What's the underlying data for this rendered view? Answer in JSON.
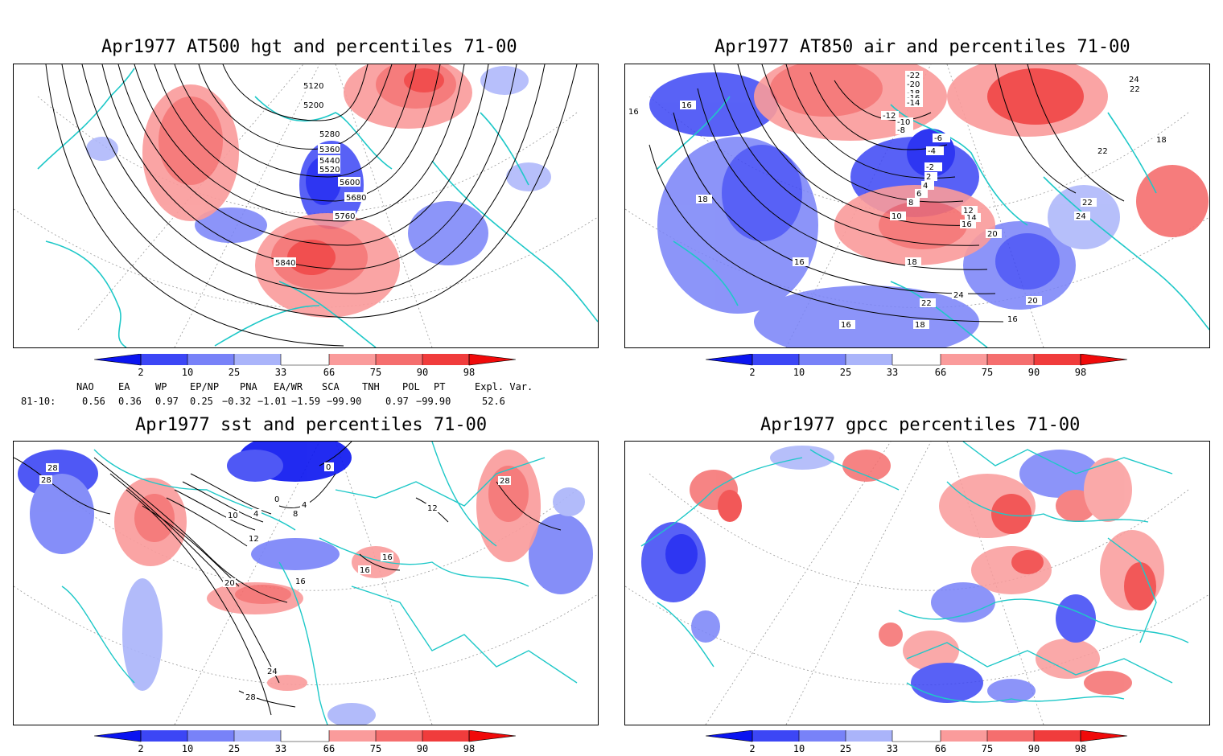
{
  "panels": {
    "hgt": {
      "title": "Apr1977 AT500 hgt and percentiles 71-00",
      "contour_labels": [
        "5120",
        "5200",
        "5280",
        "5360",
        "5440",
        "5520",
        "5600",
        "5680",
        "5760",
        "5840"
      ]
    },
    "air": {
      "title": "Apr1977 AT850 air and percentiles 71-00",
      "contour_labels": [
        "-22",
        "-20",
        "-18",
        "-16",
        "-14",
        "-12",
        "-10",
        "-8",
        "-6",
        "-4",
        "-2",
        "2",
        "4",
        "6",
        "8",
        "10",
        "12",
        "14",
        "16",
        "18",
        "20",
        "22",
        "24",
        "16",
        "16",
        "16",
        "18",
        "18",
        "22",
        "22",
        "24",
        "24",
        "22",
        "20",
        "16",
        "18",
        "16"
      ]
    },
    "sst": {
      "title": "Apr1977 sst and percentiles 71-00",
      "contour_labels": [
        "28",
        "28",
        "0",
        "0",
        "4",
        "8",
        "10",
        "4",
        "12",
        "16",
        "16",
        "16",
        "20",
        "24",
        "28",
        "12",
        "28"
      ]
    },
    "gpcc": {
      "title": "Apr1977 gpcc percentiles 71-00"
    }
  },
  "colorbar": {
    "ticks": [
      "2",
      "10",
      "25",
      "33",
      "66",
      "75",
      "90",
      "98"
    ],
    "colors": {
      "blue_deep": "#0a14f0",
      "blue_mid": "#3c46f5",
      "blue_light": "#7882f8",
      "blue_pale": "#aab4fa",
      "red_pale": "#fa9b9b",
      "red_light": "#f56e6e",
      "red_mid": "#f03c3c",
      "red_deep": "#f00a0a",
      "coast": "#1ec8c8"
    }
  },
  "indices": {
    "headers": [
      "NAO",
      "EA",
      "WP",
      "EP/NP",
      "PNA",
      "EA/WR",
      "SCA",
      "TNH",
      "POL",
      "PT",
      "Expl. Var."
    ],
    "row_label": "81-10:",
    "values": [
      "0.56",
      "0.36",
      "0.97",
      "0.25",
      "−0.32",
      "−1.01",
      "−1.59",
      "−99.90",
      "0.97",
      "−99.90",
      "52.6"
    ]
  }
}
